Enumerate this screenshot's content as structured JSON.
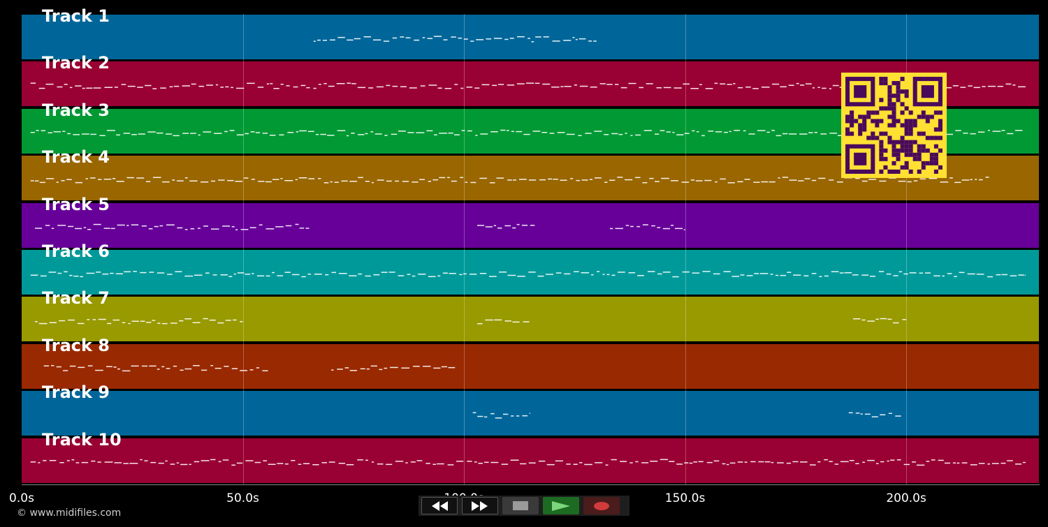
{
  "timeline": {
    "x_range_seconds": [
      0,
      230
    ],
    "tick_values": [
      0,
      50,
      100,
      150,
      200
    ],
    "tick_labels": [
      "0.0s",
      "50.0s",
      "100.0s",
      "150.0s",
      "200.0s"
    ]
  },
  "tracks": [
    {
      "label": "Track 1",
      "color": "#006699"
    },
    {
      "label": "Track 2",
      "color": "#990033"
    },
    {
      "label": "Track 3",
      "color": "#009933"
    },
    {
      "label": "Track 4",
      "color": "#996600"
    },
    {
      "label": "Track 5",
      "color": "#660099"
    },
    {
      "label": "Track 6",
      "color": "#009999"
    },
    {
      "label": "Track 7",
      "color": "#999900"
    },
    {
      "label": "Track 8",
      "color": "#992900"
    },
    {
      "label": "Track 9",
      "color": "#006699"
    },
    {
      "label": "Track 10",
      "color": "#990033"
    }
  ],
  "note_segments": [
    [
      [
        66,
        130
      ]
    ],
    [
      [
        2,
        227
      ]
    ],
    [
      [
        2,
        227
      ]
    ],
    [
      [
        2,
        219
      ]
    ],
    [
      [
        3,
        65
      ],
      [
        103,
        116
      ],
      [
        133,
        150
      ]
    ],
    [
      [
        2,
        227
      ]
    ],
    [
      [
        3,
        50
      ],
      [
        103,
        115
      ],
      [
        188,
        200
      ]
    ],
    [
      [
        5,
        56
      ],
      [
        70,
        98
      ]
    ],
    [
      [
        102,
        115
      ],
      [
        187,
        199
      ]
    ],
    [
      [
        2,
        227
      ]
    ]
  ],
  "qr_code": {
    "fg": "#4a0a5a",
    "bg": "#ffe033",
    "label": "qr-code"
  },
  "transport": {
    "rewind_icon": "rewind-icon",
    "forward_icon": "fast-forward-icon",
    "stop_icon": "stop-icon",
    "play_icon": "play-icon",
    "record_icon": "record-icon"
  },
  "copyright": "© www.midifiles.com"
}
